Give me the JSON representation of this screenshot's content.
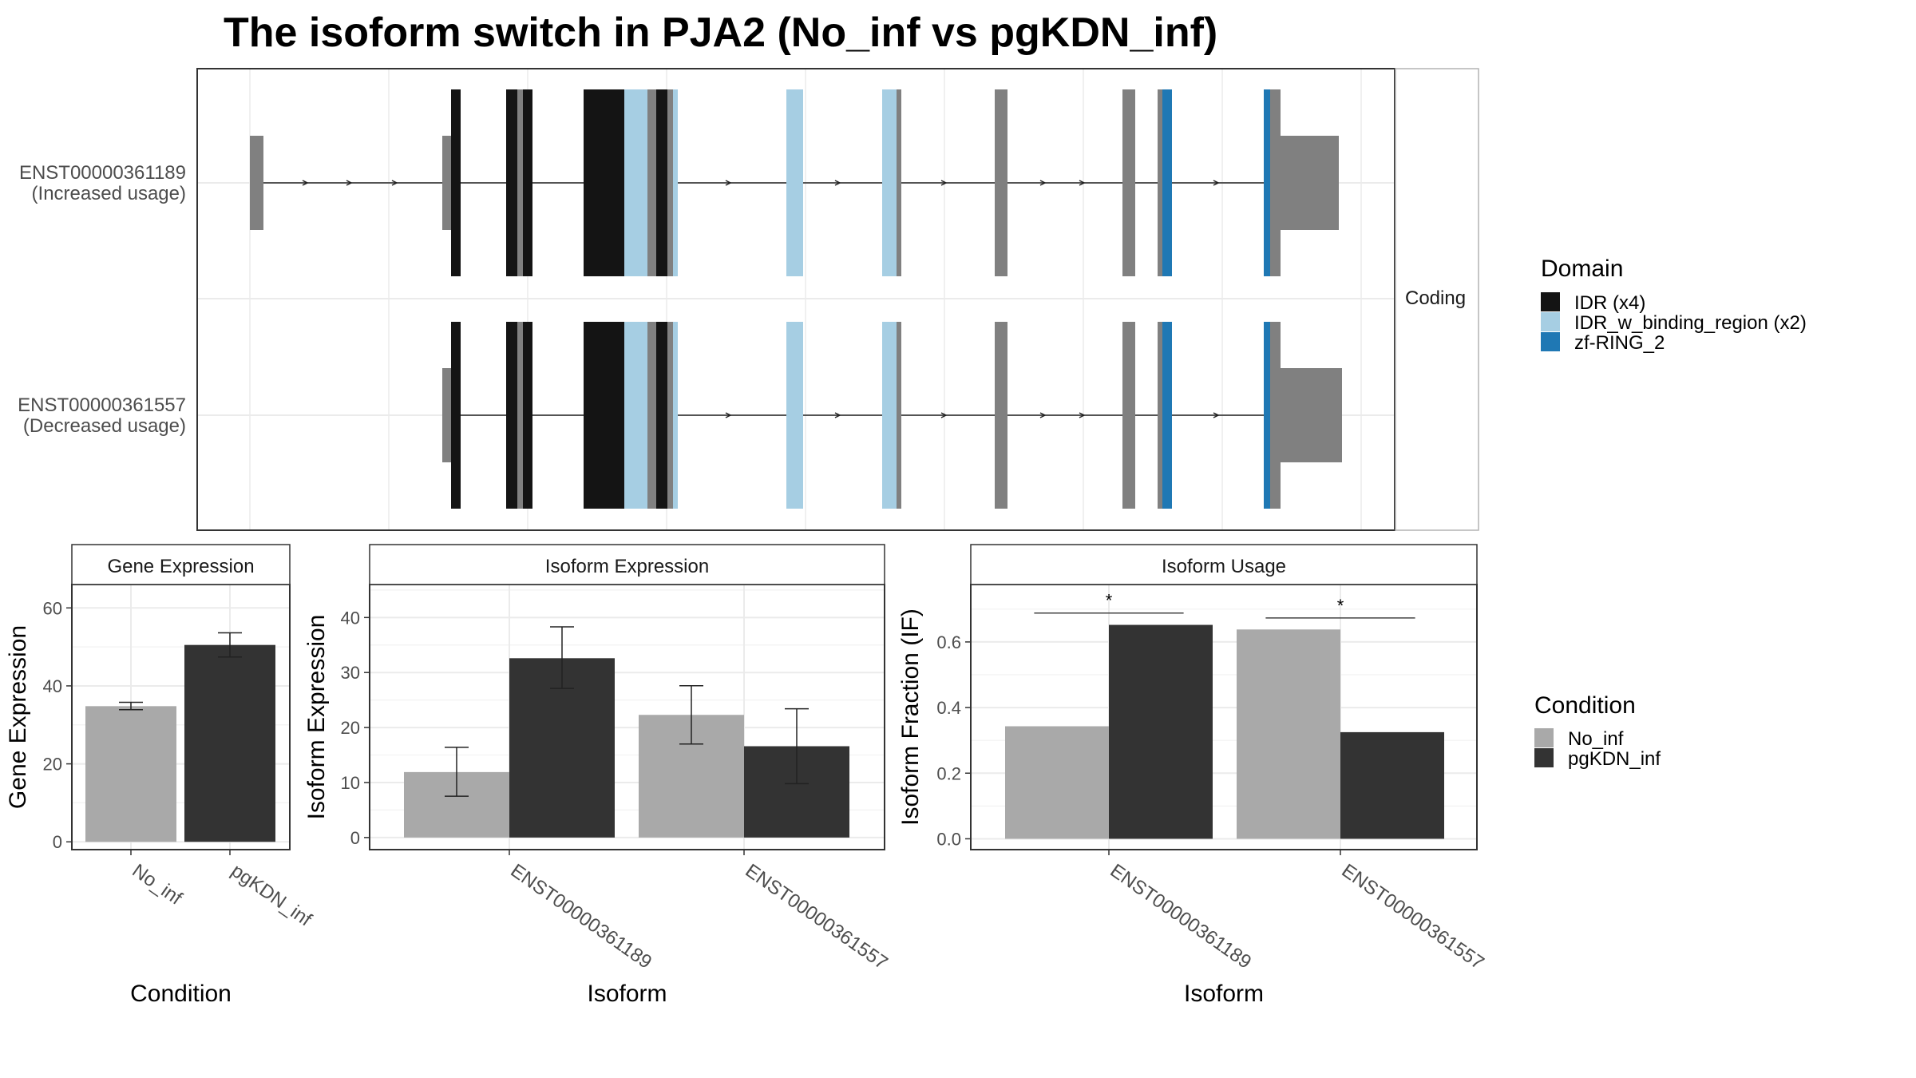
{
  "title": "The isoform switch in PJA2 (No_inf vs pgKDN_inf)",
  "colors": {
    "idr": "#141414",
    "idr_binding": "#a6cee3",
    "zf_ring": "#1f78b4",
    "noncoding_exon": "#808080",
    "no_inf": "#a9a9a9",
    "pgkdn_inf": "#333333",
    "grid": "#ebebeb",
    "strip_bg": "#ffffff",
    "border": "#333333"
  },
  "transcript_panel": {
    "strip_label": "Coding",
    "transcripts": [
      {
        "id": "ENST00000361189",
        "note": "(Increased usage)"
      },
      {
        "id": "ENST00000361557",
        "note": "(Decreased usage)"
      }
    ]
  },
  "domain_legend": {
    "title": "Domain",
    "items": [
      {
        "label": "IDR (x4)",
        "color": "#141414"
      },
      {
        "label": "IDR_w_binding_region (x2)",
        "color": "#a6cee3"
      },
      {
        "label": "zf-RING_2",
        "color": "#1f78b4"
      }
    ]
  },
  "condition_legend": {
    "title": "Condition",
    "items": [
      {
        "label": "No_inf",
        "color": "#a9a9a9"
      },
      {
        "label": "pgKDN_inf",
        "color": "#333333"
      }
    ]
  },
  "chart_data": [
    {
      "type": "bar",
      "strip": "Gene Expression",
      "xlabel": "Condition",
      "ylabel": "Gene Expression",
      "categories": [
        "No_inf",
        "pgKDN_inf"
      ],
      "values": [
        34.8,
        50.5
      ],
      "error": [
        [
          33.9,
          35.8
        ],
        [
          47.4,
          53.6
        ]
      ],
      "ylim": [
        -2,
        66
      ],
      "yticks": [
        0,
        20,
        40,
        60
      ],
      "grid": true
    },
    {
      "type": "bar",
      "strip": "Isoform Expression",
      "xlabel": "Isoform",
      "ylabel": "Isoform Expression",
      "categories": [
        "ENST00000361189",
        "ENST00000361557"
      ],
      "series": [
        {
          "name": "No_inf",
          "values": [
            11.9,
            22.3
          ],
          "error": [
            [
              7.5,
              16.4
            ],
            [
              17.0,
              27.6
            ]
          ]
        },
        {
          "name": "pgKDN_inf",
          "values": [
            32.6,
            16.6
          ],
          "error": [
            [
              27.1,
              38.3
            ],
            [
              9.8,
              23.4
            ]
          ]
        }
      ],
      "ylim": [
        -2.2,
        46
      ],
      "yticks": [
        0,
        10,
        20,
        30,
        40
      ],
      "grid": true
    },
    {
      "type": "bar",
      "strip": "Isoform Usage",
      "xlabel": "Isoform",
      "ylabel": "Isoform Fraction (IF)",
      "categories": [
        "ENST00000361189",
        "ENST00000361557"
      ],
      "series": [
        {
          "name": "No_inf",
          "values": [
            0.343,
            0.638
          ]
        },
        {
          "name": "pgKDN_inf",
          "values": [
            0.652,
            0.325
          ]
        }
      ],
      "significance": [
        {
          "category": "ENST00000361189",
          "label": "*",
          "y": 0.688
        },
        {
          "category": "ENST00000361557",
          "label": "*",
          "y": 0.673
        }
      ],
      "ylim": [
        -0.033,
        0.775
      ],
      "yticks": [
        "0.0",
        "0.2",
        "0.4",
        "0.6"
      ],
      "grid": true
    }
  ]
}
